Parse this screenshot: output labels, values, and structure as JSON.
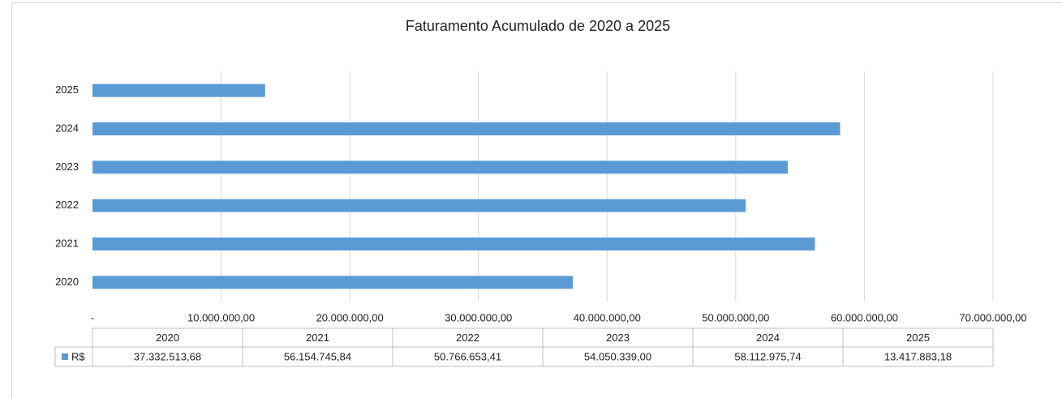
{
  "chart_data": {
    "type": "barh",
    "title": "Faturamento Acumulado de 2020 a 2025",
    "categories": [
      "2020",
      "2021",
      "2022",
      "2023",
      "2024",
      "2025"
    ],
    "series": [
      {
        "name": "R$",
        "color": "#5b9bd5",
        "values": [
          37332513.68,
          56154745.84,
          50766653.41,
          54050339.0,
          58112975.74,
          13417883.18
        ],
        "value_labels": [
          "37.332.513,68",
          "56.154.745,84",
          "50.766.653,41",
          "54.050.339,00",
          "58.112.975,74",
          "13.417.883,18"
        ]
      }
    ],
    "xlim": [
      0,
      70000000
    ],
    "xticks": [
      {
        "value": 0,
        "label": "-"
      },
      {
        "value": 10000000,
        "label": "10.000.000,00"
      },
      {
        "value": 20000000,
        "label": "20.000.000,00"
      },
      {
        "value": 30000000,
        "label": "30.000.000,00"
      },
      {
        "value": 40000000,
        "label": "40.000.000,00"
      },
      {
        "value": 50000000,
        "label": "50.000.000,00"
      },
      {
        "value": 60000000,
        "label": "60.000.000,00"
      },
      {
        "value": 70000000,
        "label": "70.000.000,00"
      }
    ],
    "grid": true,
    "data_table": true
  }
}
